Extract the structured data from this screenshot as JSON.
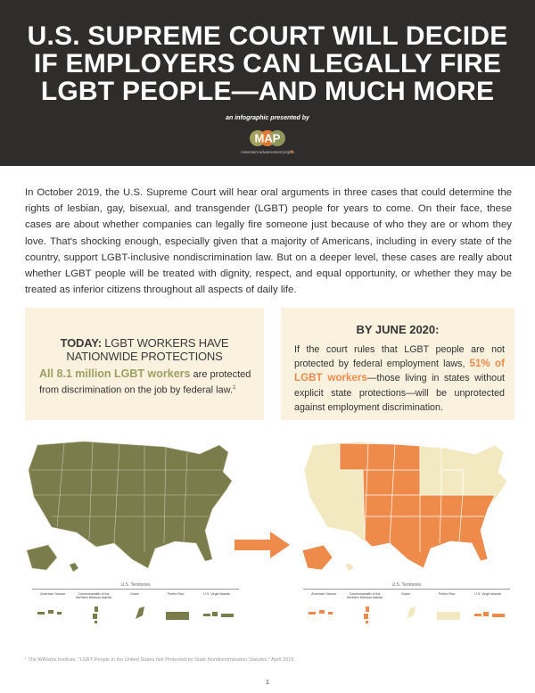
{
  "header": {
    "title": "U.S. SUPREME COURT WILL DECIDE IF EMPLOYERS CAN LEGALLY FIRE LGBT PEOPLE—AND MUCH MORE",
    "presented_by": "an infographic presented by",
    "logo_letters": "MAP",
    "logo_tagline": "movement advancement project"
  },
  "intro": {
    "text": "In October 2019, the U.S. Supreme Court will hear oral arguments in three cases that could determine the rights of lesbian, gay, bisexual, and transgender (LGBT) people for years to come. On their face, these cases are about whether companies can legally fire someone just because of who they are or whom they love. That's shocking enough, especially given that a majority of Americans, including in every state of the country, support LGBT-inclusive nondiscrimination law. But on a deeper level, these cases are really about whether LGBT people will be treated with dignity, respect, and equal opportunity, or whether they may be treated as inferior citizens throughout all aspects of daily life."
  },
  "today_box": {
    "title_bold": "TODAY:",
    "title_rest_1": " LGBT WORKERS HAVE",
    "title_line2": "NATIONWIDE PROTECTIONS",
    "highlight": "All 8.1 million LGBT workers",
    "body": " are protected from discrimination on the job by federal law.",
    "footnote_ref": "1"
  },
  "june_box": {
    "title": "BY JUNE 2020:",
    "body_pre": "If the court rules that LGBT people are not protected by federal employment laws, ",
    "highlight": "51% of LGBT workers",
    "body_post": "—those living in states without explicit state protections—will be unprotected against employment discrimination."
  },
  "territories": {
    "title": "U.S. Territories",
    "labels": [
      "American Samoa",
      "Commonwealth of the Northern Mariana Islands",
      "Guam",
      "Puerto Rico",
      "U.S. Virgin Islands"
    ]
  },
  "footnote": "¹ The Williams Institute. \"LGBT People in the United States Not Protected by State Nondiscrimination Statutes.\" April 2019.",
  "page_number": "1",
  "colors": {
    "header_bg": "#2e2d2c",
    "box_bg": "#fbf1df",
    "green": "#7a7c4c",
    "orange": "#ee8b4a",
    "cream": "#f3e9c0"
  }
}
